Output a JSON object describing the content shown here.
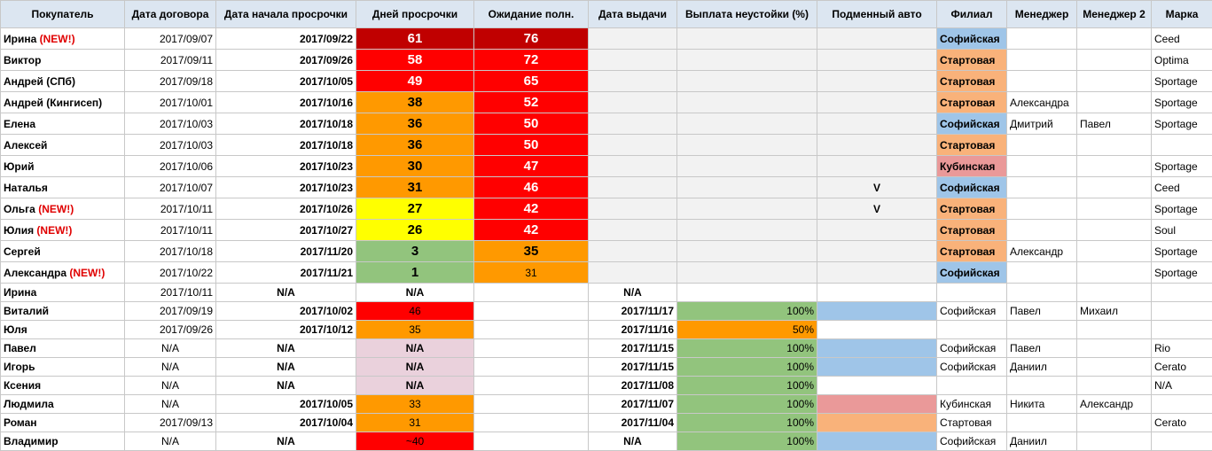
{
  "headers": [
    "Покупатель",
    "Дата договора",
    "Дата начала просрочки",
    "Дней просрочки",
    "Ожидание полн.",
    "Дата выдачи",
    "Выплата неустойки (%)",
    "Подменный авто",
    "Филиал",
    "Менеджер",
    "Менеджер 2",
    "Марка"
  ],
  "new_tag": "(NEW!)",
  "rows": [
    {
      "name": "Ирина",
      "is_new": true,
      "contract": "2017/09/07",
      "overdue_start": "2017/09/22",
      "days": "61",
      "days_color": "c-darkred",
      "wait": "76",
      "wait_color": "c-darkred",
      "issued": "",
      "payout": "",
      "payout_color": "",
      "car": "",
      "branch": "Софийская",
      "branch_color": "b-blue",
      "manager": "",
      "manager2": "",
      "brand": "Ceed"
    },
    {
      "name": "Виктор",
      "is_new": false,
      "contract": "2017/09/11",
      "overdue_start": "2017/09/26",
      "days": "58",
      "days_color": "c-red",
      "wait": "72",
      "wait_color": "c-red",
      "issued": "",
      "payout": "",
      "payout_color": "",
      "car": "",
      "branch": "Стартовая",
      "branch_color": "b-orange",
      "manager": "",
      "manager2": "",
      "brand": "Optima"
    },
    {
      "name": "Андрей (СПб)",
      "is_new": false,
      "contract": "2017/09/18",
      "overdue_start": "2017/10/05",
      "days": "49",
      "days_color": "c-red",
      "wait": "65",
      "wait_color": "c-red",
      "issued": "",
      "payout": "",
      "payout_color": "",
      "car": "",
      "branch": "Стартовая",
      "branch_color": "b-orange",
      "manager": "",
      "manager2": "",
      "brand": "Sportage"
    },
    {
      "name": "Андрей (Кингисеп)",
      "is_new": false,
      "contract": "2017/10/01",
      "overdue_start": "2017/10/16",
      "days": "38",
      "days_color": "c-orange",
      "wait": "52",
      "wait_color": "c-red",
      "issued": "",
      "payout": "",
      "payout_color": "",
      "car": "",
      "branch": "Стартовая",
      "branch_color": "b-orange",
      "manager": "Александра",
      "manager2": "",
      "brand": "Sportage"
    },
    {
      "name": "Елена",
      "is_new": false,
      "contract": "2017/10/03",
      "overdue_start": "2017/10/18",
      "days": "36",
      "days_color": "c-orange",
      "wait": "50",
      "wait_color": "c-red",
      "issued": "",
      "payout": "",
      "payout_color": "",
      "car": "",
      "branch": "Софийская",
      "branch_color": "b-blue",
      "manager": "Дмитрий",
      "manager2": "Павел",
      "brand": "Sportage"
    },
    {
      "name": "Алексей",
      "is_new": false,
      "contract": "2017/10/03",
      "overdue_start": "2017/10/18",
      "days": "36",
      "days_color": "c-orange",
      "wait": "50",
      "wait_color": "c-red",
      "issued": "",
      "payout": "",
      "payout_color": "",
      "car": "",
      "branch": "Стартовая",
      "branch_color": "b-orange",
      "manager": "",
      "manager2": "",
      "brand": ""
    },
    {
      "name": "Юрий",
      "is_new": false,
      "contract": "2017/10/06",
      "overdue_start": "2017/10/23",
      "days": "30",
      "days_color": "c-orange",
      "wait": "47",
      "wait_color": "c-red",
      "issued": "",
      "payout": "",
      "payout_color": "",
      "car": "",
      "branch": "Кубинская",
      "branch_color": "b-pink",
      "manager": "",
      "manager2": "",
      "brand": "Sportage"
    },
    {
      "name": "Наталья",
      "is_new": false,
      "contract": "2017/10/07",
      "overdue_start": "2017/10/23",
      "days": "31",
      "days_color": "c-orange",
      "wait": "46",
      "wait_color": "c-red",
      "issued": "",
      "payout": "",
      "payout_color": "",
      "car": "V",
      "branch": "Софийская",
      "branch_color": "b-blue",
      "manager": "",
      "manager2": "",
      "brand": "Ceed"
    },
    {
      "name": "Ольга",
      "is_new": true,
      "contract": "2017/10/11",
      "overdue_start": "2017/10/26",
      "days": "27",
      "days_color": "c-yellow",
      "wait": "42",
      "wait_color": "c-red",
      "issued": "",
      "payout": "",
      "payout_color": "",
      "car": "V",
      "branch": "Стартовая",
      "branch_color": "b-orange",
      "manager": "",
      "manager2": "",
      "brand": "Sportage"
    },
    {
      "name": "Юлия",
      "is_new": true,
      "contract": "2017/10/11",
      "overdue_start": "2017/10/27",
      "days": "26",
      "days_color": "c-yellow",
      "wait": "42",
      "wait_color": "c-red",
      "issued": "",
      "payout": "",
      "payout_color": "",
      "car": "",
      "branch": "Стартовая",
      "branch_color": "b-orange",
      "manager": "",
      "manager2": "",
      "brand": "Soul"
    },
    {
      "name": "Сергей",
      "is_new": false,
      "contract": "2017/10/18",
      "overdue_start": "2017/11/20",
      "days": "3",
      "days_color": "c-green",
      "wait": "35",
      "wait_color": "c-orange",
      "issued": "",
      "payout": "",
      "payout_color": "",
      "car": "",
      "branch": "Стартовая",
      "branch_color": "b-orange",
      "manager": "Александр",
      "manager2": "",
      "brand": "Sportage"
    },
    {
      "name": "Александра",
      "is_new": true,
      "contract": "2017/10/22",
      "overdue_start": "2017/11/21",
      "days": "1",
      "days_color": "c-green",
      "wait": "31",
      "wait_color": "c-orange",
      "issued": "",
      "payout": "",
      "payout_color": "",
      "car": "",
      "branch": "Софийская",
      "branch_color": "b-blue",
      "manager": "",
      "manager2": "",
      "brand": "Sportage"
    },
    {
      "name": "Ирина",
      "is_new": false,
      "contract": "2017/10/11",
      "overdue_start": "N/A",
      "days": "N/A",
      "days_color": "",
      "wait": "",
      "wait_color": "",
      "issued": "N/A",
      "payout": "",
      "payout_color": "",
      "car": "",
      "branch": "",
      "branch_color": "",
      "manager": "",
      "manager2": "",
      "brand": ""
    },
    {
      "name": "Виталий",
      "is_new": false,
      "contract": "2017/09/19",
      "overdue_start": "2017/10/02",
      "days": "46",
      "days_color": "c-red",
      "wait": "",
      "wait_color": "",
      "issued": "2017/11/17",
      "payout": "100%",
      "payout_color": "c-green",
      "car": "",
      "car_color": "b-blue",
      "branch": "Софийская",
      "branch_color": "",
      "manager": "Павел",
      "manager2": "Михаил",
      "brand": ""
    },
    {
      "name": "Юля",
      "is_new": false,
      "contract": "2017/09/26",
      "overdue_start": "2017/10/12",
      "days": "35",
      "days_color": "c-orange",
      "wait": "",
      "wait_color": "",
      "issued": "2017/11/16",
      "payout": "50%",
      "payout_color": "c-orange",
      "car": "",
      "branch": "",
      "branch_color": "",
      "manager": "",
      "manager2": "",
      "brand": ""
    },
    {
      "name": "Павел",
      "is_new": false,
      "contract": "N/A",
      "overdue_start": "N/A",
      "days": "N/A",
      "days_color": "c-pink",
      "wait": "",
      "wait_color": "",
      "issued": "2017/11/15",
      "payout": "100%",
      "payout_color": "c-green",
      "car": "",
      "car_color": "b-blue",
      "branch": "Софийская",
      "branch_color": "",
      "manager": "Павел",
      "manager2": "",
      "brand": "Rio"
    },
    {
      "name": "Игорь",
      "is_new": false,
      "contract": "N/A",
      "overdue_start": "N/A",
      "days": "N/A",
      "days_color": "c-pink",
      "wait": "",
      "wait_color": "",
      "issued": "2017/11/15",
      "payout": "100%",
      "payout_color": "c-green",
      "car": "",
      "car_color": "b-blue",
      "branch": "Софийская",
      "branch_color": "",
      "manager": "Даниил",
      "manager2": "",
      "brand": "Cerato"
    },
    {
      "name": "Ксения",
      "is_new": false,
      "contract": "N/A",
      "overdue_start": "N/A",
      "days": "N/A",
      "days_color": "c-pink",
      "wait": "",
      "wait_color": "",
      "issued": "2017/11/08",
      "payout": "100%",
      "payout_color": "c-green",
      "car": "",
      "branch": "",
      "branch_color": "",
      "manager": "",
      "manager2": "",
      "brand": "N/A"
    },
    {
      "name": "Людмила",
      "is_new": false,
      "contract": "N/A",
      "overdue_start": "2017/10/05",
      "days": "33",
      "days_color": "c-orange",
      "wait": "",
      "wait_color": "",
      "issued": "2017/11/07",
      "payout": "100%",
      "payout_color": "c-green",
      "car": "",
      "car_color": "b-pink",
      "branch": "Кубинская",
      "branch_color": "",
      "manager": "Никита",
      "manager2": "Александр",
      "brand": ""
    },
    {
      "name": "Роман",
      "is_new": false,
      "contract": "2017/09/13",
      "overdue_start": "2017/10/04",
      "days": "31",
      "days_color": "c-orange",
      "wait": "",
      "wait_color": "",
      "issued": "2017/11/04",
      "payout": "100%",
      "payout_color": "c-green",
      "car": "",
      "car_color": "b-orange",
      "branch": "Стартовая",
      "branch_color": "",
      "manager": "",
      "manager2": "",
      "brand": "Cerato"
    },
    {
      "name": "Владимир",
      "is_new": false,
      "contract": "N/A",
      "overdue_start": "N/A",
      "days": "~40",
      "days_color": "c-red",
      "wait": "",
      "wait_color": "",
      "issued": "N/A",
      "payout": "100%",
      "payout_color": "c-green",
      "car": "",
      "car_color": "b-blue",
      "branch": "Софийская",
      "branch_color": "",
      "manager": "Даниил",
      "manager2": "",
      "brand": ""
    }
  ]
}
